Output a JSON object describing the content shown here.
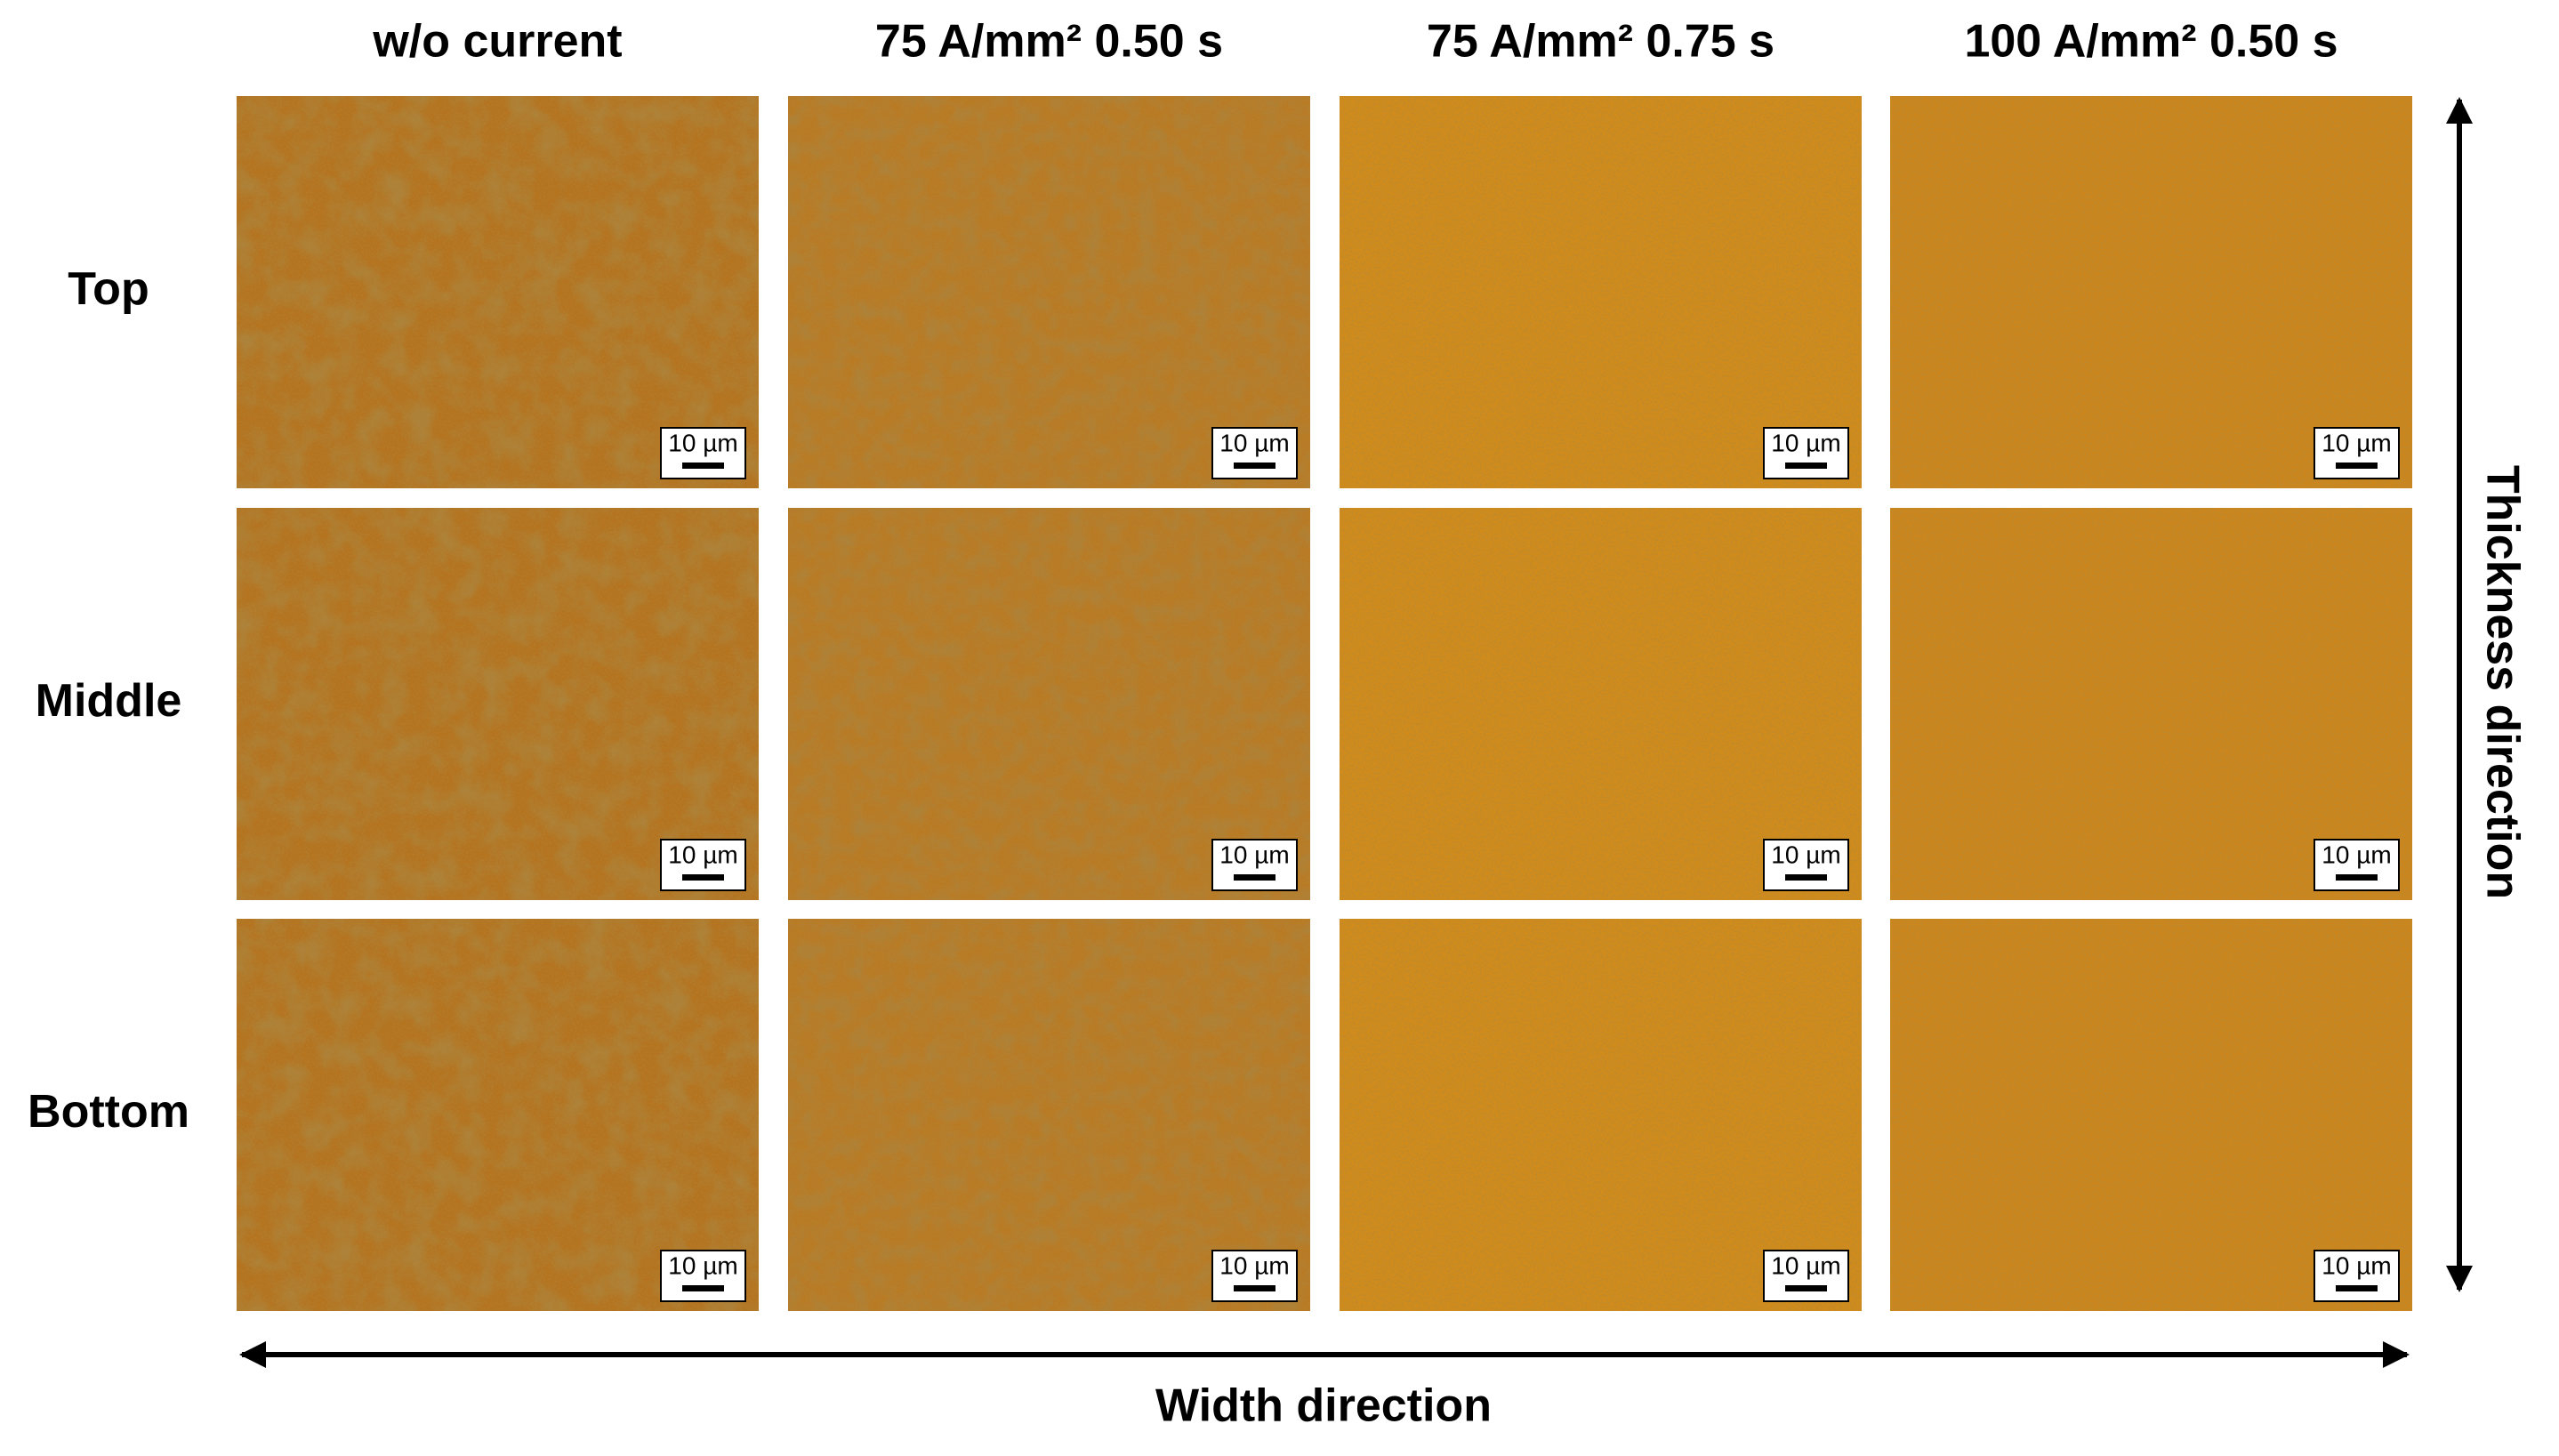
{
  "columns": [
    "w/o current",
    "75 A/mm² 0.50 s",
    "75 A/mm² 0.75 s",
    "100 A/mm² 0.50 s"
  ],
  "rows": [
    {
      "label": "Top",
      "scale_bars": [
        "10 µm",
        "10 µm",
        "10 µm",
        "10 µm"
      ]
    },
    {
      "label": "Middle",
      "scale_bars": [
        "10 µm",
        "10 µm",
        "10 µm",
        "10 µm"
      ]
    },
    {
      "label": "Bottom",
      "scale_bars": [
        "10 µm",
        "10 µm",
        "10 µm",
        "10 µm"
      ]
    }
  ],
  "x_axis": "Width direction",
  "y_axis": "Thickness direction"
}
